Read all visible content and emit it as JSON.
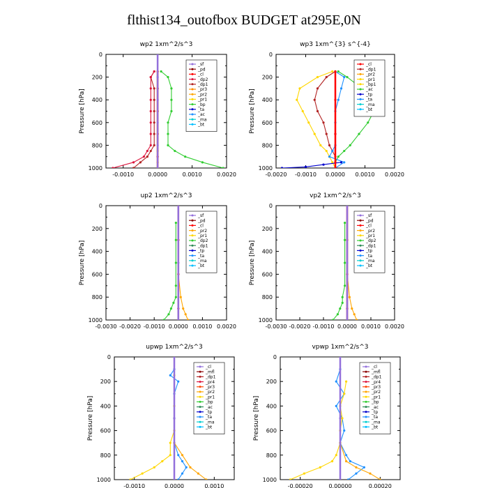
{
  "title": "flthist134_outofbox  BUDGET at295E,0N",
  "chart_data": [
    {
      "type": "line",
      "title": "wp2   1xm^2/s^3",
      "ylabel": "Pressure  [hPa]",
      "xlim": [
        -0.0015,
        0.002
      ],
      "xticks": [
        -0.001,
        0.0,
        0.001,
        0.002
      ],
      "xticklabels": [
        "-0.0010",
        "0.0000",
        "0.0010",
        "0.0020"
      ],
      "ylim": [
        1000,
        0
      ],
      "yticks": [
        0,
        200,
        400,
        600,
        800,
        1000
      ],
      "legend_position": "top-right",
      "legend": [
        "_sf",
        "_pd",
        "_cl",
        "_dp2",
        "_dp1",
        "_pr3",
        "_pr2",
        "_pr1",
        "_bp",
        "_ta",
        "_ac",
        "_ma",
        "_bt"
      ],
      "colors": [
        "#9370DB",
        "#8B0000",
        "#FF0000",
        "#DC143C",
        "#B22222",
        "#FF8C00",
        "#FFA500",
        "#FFD700",
        "#32CD32",
        "#0000CD",
        "#1E90FF",
        "#00CED1",
        "#00BFFF"
      ],
      "series": [
        {
          "name": "_bp",
          "color": "#32CD32",
          "pressure": [
            150,
            200,
            300,
            400,
            500,
            600,
            700,
            800,
            850,
            900,
            950,
            1000
          ],
          "values": [
            0.0001,
            0.0003,
            0.0004,
            0.0004,
            0.0004,
            0.0003,
            0.0003,
            0.0003,
            0.0005,
            0.0008,
            0.0013,
            0.0019
          ]
        },
        {
          "name": "_pr1",
          "color": "#FFD700",
          "pressure": [
            150,
            300,
            500,
            700,
            850,
            950,
            1000
          ],
          "values": [
            0.0,
            0.0,
            0.0,
            0.0,
            0.0,
            0.0,
            0.0
          ]
        },
        {
          "name": "_dp1",
          "color": "#B22222",
          "pressure": [
            150,
            200,
            300,
            400,
            500,
            600,
            700,
            800,
            850,
            900,
            950,
            1000
          ],
          "values": [
            -0.0001,
            -0.0002,
            -0.0001,
            -0.0001,
            -0.0001,
            -0.0001,
            -0.0001,
            -0.0001,
            -0.0002,
            -0.0003,
            -0.0005,
            -0.0007
          ]
        },
        {
          "name": "_dp2",
          "color": "#DC143C",
          "pressure": [
            150,
            200,
            300,
            400,
            500,
            600,
            700,
            800,
            850,
            900,
            950,
            1000
          ],
          "values": [
            -0.0001,
            -0.0002,
            -0.0002,
            -0.0002,
            -0.0002,
            -0.0002,
            -0.0002,
            -0.0002,
            -0.0003,
            -0.0004,
            -0.0007,
            -0.0013
          ]
        },
        {
          "name": "_cl",
          "color": "#FF0000",
          "pressure": [
            150,
            300,
            500,
            700,
            900,
            1000
          ],
          "values": [
            0.0,
            0.0,
            0.0,
            0.0,
            0.0,
            0.0
          ]
        },
        {
          "name": "_sf",
          "color": "#9370DB",
          "pressure": [
            0,
            200,
            400,
            600,
            800,
            1000
          ],
          "values": [
            0.0,
            0.0,
            0.0,
            0.0,
            0.0,
            0.0
          ]
        }
      ]
    },
    {
      "type": "line",
      "title": "wp3   1xm^{3} s^{-4}",
      "ylabel": "Pressure  [hPa]",
      "xlim": [
        -0.002,
        0.002
      ],
      "xticks": [
        -0.002,
        -0.001,
        0.0,
        0.001,
        0.002
      ],
      "xticklabels": [
        "-0.0020",
        "-0.0010",
        "0.0000",
        "0.0010",
        "0.0020"
      ],
      "ylim": [
        1000,
        0
      ],
      "yticks": [
        0,
        200,
        400,
        600,
        800,
        1000
      ],
      "legend_position": "top-right",
      "legend": [
        "_cl",
        "_dp1",
        "_pr2",
        "_pr1",
        "_bp1",
        "_ac",
        "_tp",
        "_ta",
        "_ma",
        "_bt"
      ],
      "colors": [
        "#FF0000",
        "#B22222",
        "#FFA500",
        "#FFD700",
        "#FFD700",
        "#32CD32",
        "#0000CD",
        "#1E90FF",
        "#00CED1",
        "#00BFFF"
      ],
      "series": [
        {
          "name": "_ac",
          "color": "#32CD32",
          "pressure": [
            150,
            200,
            300,
            400,
            500,
            600,
            700,
            800,
            850,
            900,
            950,
            1000
          ],
          "values": [
            0.0001,
            0.0004,
            0.0009,
            0.0012,
            0.0013,
            0.0011,
            0.0008,
            0.0005,
            0.0003,
            0.0001,
            0.0,
            0.0
          ]
        },
        {
          "name": "_pr1",
          "color": "#FFD700",
          "pressure": [
            150,
            200,
            300,
            400,
            500,
            600,
            700,
            800,
            850,
            900,
            950,
            1000
          ],
          "values": [
            -0.0001,
            -0.0006,
            -0.0012,
            -0.0013,
            -0.0011,
            -0.0009,
            -0.0007,
            -0.0005,
            -0.0003,
            -0.0002,
            -0.0001,
            0.0
          ]
        },
        {
          "name": "_dp1",
          "color": "#B22222",
          "pressure": [
            150,
            200,
            300,
            400,
            500,
            600,
            700,
            800,
            850,
            900,
            950,
            1000
          ],
          "values": [
            0.0,
            -0.0003,
            -0.0006,
            -0.0007,
            -0.0006,
            -0.0004,
            -0.0003,
            -0.0002,
            -0.0001,
            0.0,
            0.0,
            0.0
          ]
        },
        {
          "name": "_ta",
          "color": "#1E90FF",
          "pressure": [
            150,
            200,
            300,
            400,
            500,
            600,
            700,
            800,
            850,
            900,
            950,
            1000
          ],
          "values": [
            0.0,
            0.0003,
            0.0002,
            0.0001,
            0.0,
            0.0,
            0.0,
            0.0,
            -0.0001,
            -0.0002,
            0.0003,
            0.0
          ]
        },
        {
          "name": "_tp",
          "color": "#0000CD",
          "pressure": [
            950,
            970,
            990,
            1000
          ],
          "values": [
            0.0002,
            -0.0004,
            -0.001,
            -0.0018
          ]
        },
        {
          "name": "_cl",
          "color": "#FF0000",
          "pressure": [
            150,
            400,
            700,
            1000
          ],
          "values": [
            0.0,
            0.0,
            0.0,
            0.0
          ]
        }
      ]
    },
    {
      "type": "line",
      "title": "up2   1xm^2/s^3",
      "ylabel": "Pressure  [hPa]",
      "xlim": [
        -0.003,
        0.002
      ],
      "xticks": [
        -0.003,
        -0.002,
        -0.001,
        0.0,
        0.001,
        0.002
      ],
      "xticklabels": [
        "-0.0030",
        "-0.0020",
        "-0.0010",
        "0.0000",
        "0.0010",
        "0.0020"
      ],
      "ylim": [
        1000,
        0
      ],
      "yticks": [
        0,
        200,
        400,
        600,
        800,
        1000
      ],
      "legend_position": "top-right",
      "legend": [
        "_sf",
        "_pd",
        "_cl",
        "_pr2",
        "_pr1",
        "_dp2",
        "_dp1",
        "_tp",
        "_ta",
        "_ma",
        "_bt"
      ],
      "colors": [
        "#9370DB",
        "#8B0000",
        "#FF0000",
        "#FFA500",
        "#FFD700",
        "#32CD32",
        "#2E8B57",
        "#0000CD",
        "#1E90FF",
        "#00CED1",
        "#00BFFF"
      ],
      "series": [
        {
          "name": "_dp2",
          "color": "#32CD32",
          "pressure": [
            150,
            300,
            500,
            700,
            800,
            850,
            900,
            950,
            1000
          ],
          "values": [
            -0.0001,
            -0.0001,
            -0.0001,
            -0.0001,
            -0.0001,
            -0.0002,
            -0.0003,
            -0.0004,
            -0.0006
          ]
        },
        {
          "name": "_pr2",
          "color": "#FFA500",
          "pressure": [
            300,
            600,
            800,
            900,
            950,
            1000
          ],
          "values": [
            0.0,
            0.0,
            0.0001,
            0.0002,
            0.0003,
            0.0004
          ]
        },
        {
          "name": "_cl",
          "color": "#FF0000",
          "pressure": [
            0,
            300,
            600,
            900,
            1000
          ],
          "values": [
            0.0,
            0.0,
            0.0,
            0.0,
            0.0
          ]
        },
        {
          "name": "_sf",
          "color": "#9370DB",
          "pressure": [
            0,
            500,
            1000
          ],
          "values": [
            0.0,
            0.0,
            0.0
          ]
        }
      ]
    },
    {
      "type": "line",
      "title": "vp2   1xm^2/s^3",
      "ylabel": "Pressure  [hPa]",
      "xlim": [
        -0.003,
        0.002
      ],
      "xticks": [
        -0.003,
        -0.002,
        -0.001,
        0.0,
        0.001,
        0.002
      ],
      "xticklabels": [
        "-0.0030",
        "-0.0020",
        "-0.0010",
        "0.0000",
        "0.0010",
        "0.0020"
      ],
      "ylim": [
        1000,
        0
      ],
      "yticks": [
        0,
        200,
        400,
        600,
        800,
        1000
      ],
      "legend_position": "top-right",
      "legend": [
        "_sf",
        "_pd",
        "_cl",
        "_pr2",
        "_pr1",
        "_dp2",
        "_dp1",
        "_tp",
        "_ta",
        "_ma",
        "_bt"
      ],
      "colors": [
        "#9370DB",
        "#8B0000",
        "#FF0000",
        "#FFA500",
        "#FFD700",
        "#32CD32",
        "#2E8B57",
        "#0000CD",
        "#1E90FF",
        "#00CED1",
        "#00BFFF"
      ],
      "series": [
        {
          "name": "_dp2",
          "color": "#32CD32",
          "pressure": [
            150,
            300,
            500,
            700,
            800,
            850,
            900,
            950,
            1000
          ],
          "values": [
            -0.0001,
            -0.0001,
            -0.0001,
            -0.0001,
            -0.0002,
            -0.0002,
            -0.0003,
            -0.0004,
            -0.0006
          ]
        },
        {
          "name": "_pr2",
          "color": "#FFA500",
          "pressure": [
            300,
            600,
            800,
            900,
            950,
            1000
          ],
          "values": [
            0.0,
            0.0,
            0.0001,
            0.0002,
            0.0003,
            0.0004
          ]
        },
        {
          "name": "_cl",
          "color": "#FF0000",
          "pressure": [
            0,
            300,
            600,
            900,
            1000
          ],
          "values": [
            0.0,
            0.0,
            0.0,
            0.0,
            0.0
          ]
        },
        {
          "name": "_sf",
          "color": "#9370DB",
          "pressure": [
            0,
            500,
            1000
          ],
          "values": [
            0.0,
            0.0,
            0.0
          ]
        }
      ]
    },
    {
      "type": "line",
      "title": "upwp   1xm^2/s^3",
      "ylabel": "Pressure  [hPa]",
      "xlim": [
        -0.0015,
        0.0015
      ],
      "xticks": [
        -0.001,
        0.0,
        0.001
      ],
      "xticklabels": [
        "-0.0010",
        "0.0000",
        "0.0010"
      ],
      "ylim": [
        1000,
        0
      ],
      "yticks": [
        0,
        200,
        400,
        600,
        800,
        1000
      ],
      "legend_position": "top-right",
      "legend": [
        "_cl",
        "_mfl",
        "_dp1",
        "_pr4",
        "_pr3",
        "_pr2",
        "_pr1",
        "_bp",
        "_ac",
        "_tp",
        "_ta",
        "_ma",
        "_bt"
      ],
      "colors": [
        "#9370DB",
        "#8B0000",
        "#B22222",
        "#DC143C",
        "#FF4500",
        "#FFA500",
        "#FFD700",
        "#32CD32",
        "#2E8B57",
        "#0000CD",
        "#1E90FF",
        "#00CED1",
        "#00BFFF"
      ],
      "series": [
        {
          "name": "_pr1",
          "color": "#FFD700",
          "pressure": [
            150,
            400,
            600,
            700,
            800,
            850,
            900,
            950,
            1000
          ],
          "values": [
            0.0,
            0.0,
            0.0,
            -0.0001,
            -0.0001,
            -0.0003,
            -0.0005,
            -0.0008,
            -0.0011
          ]
        },
        {
          "name": "_ta",
          "color": "#1E90FF",
          "pressure": [
            100,
            150,
            200,
            300,
            500,
            700,
            800,
            850,
            900,
            950,
            1000
          ],
          "values": [
            0.0,
            -0.0001,
            0.0001,
            0.0,
            0.0,
            0.0,
            0.0001,
            0.0002,
            0.0003,
            0.0002,
            0.0001
          ]
        },
        {
          "name": "_pr2",
          "color": "#FFA500",
          "pressure": [
            700,
            800,
            900,
            950,
            1000
          ],
          "values": [
            0.0,
            0.0002,
            0.0004,
            0.0006,
            0.0008
          ]
        },
        {
          "name": "_cl",
          "color": "#9370DB",
          "pressure": [
            0,
            500,
            1000
          ],
          "values": [
            0.0,
            0.0,
            0.0
          ]
        }
      ]
    },
    {
      "type": "line",
      "title": "vpwp   1xm^2/s^3",
      "ylabel": "Pressure  [hPa]",
      "xlim": [
        -0.0003,
        0.0003
      ],
      "xticks": [
        -0.0002,
        0.0,
        0.0002
      ],
      "xticklabels": [
        "-0.00020",
        "0.00000",
        "0.00020"
      ],
      "ylim": [
        1000,
        0
      ],
      "yticks": [
        0,
        200,
        400,
        600,
        800,
        1000
      ],
      "legend_position": "top-right",
      "legend": [
        "_cl",
        "_mfl",
        "_dp1",
        "_pr4",
        "_pr3",
        "_pr2",
        "_pr1",
        "_bp",
        "_ac",
        "_tp",
        "_ta",
        "_ma",
        "_bt"
      ],
      "colors": [
        "#9370DB",
        "#8B0000",
        "#B22222",
        "#DC143C",
        "#FF4500",
        "#FFA500",
        "#FFD700",
        "#32CD32",
        "#2E8B57",
        "#0000CD",
        "#1E90FF",
        "#00CED1",
        "#00BFFF"
      ],
      "series": [
        {
          "name": "_ta",
          "color": "#1E90FF",
          "pressure": [
            100,
            200,
            300,
            400,
            500,
            600,
            700,
            800,
            850,
            900,
            950,
            1000
          ],
          "values": [
            0.0,
            -2e-05,
            2e-05,
            -2e-05,
            1e-05,
            2e-05,
            0.0,
            3e-05,
            5e-05,
            0.00012,
            8e-05,
            4e-05
          ]
        },
        {
          "name": "_pr1",
          "color": "#FFD700",
          "pressure": [
            200,
            300,
            400,
            500,
            600,
            700,
            800,
            850,
            900,
            950,
            1000
          ],
          "values": [
            3e-05,
            2e-05,
            0.0,
            1e-05,
            0.0,
            0.0,
            -2e-05,
            -4e-05,
            -0.0001,
            -0.00018,
            -0.00025
          ]
        },
        {
          "name": "_pr2",
          "color": "#FFA500",
          "pressure": [
            700,
            850,
            900,
            950,
            1000
          ],
          "values": [
            0.0,
            3e-05,
            8e-05,
            0.00015,
            0.0002
          ]
        },
        {
          "name": "_cl",
          "color": "#9370DB",
          "pressure": [
            0,
            500,
            1000
          ],
          "values": [
            0.0,
            0.0,
            0.0
          ]
        }
      ]
    }
  ]
}
